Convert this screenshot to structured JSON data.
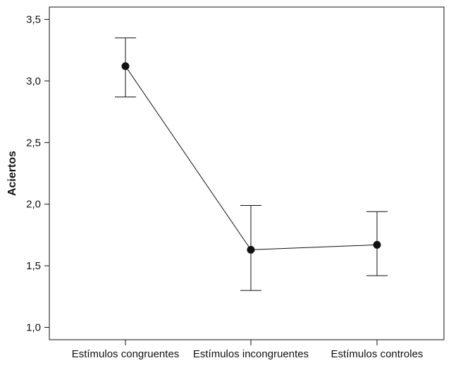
{
  "chart_data": {
    "type": "line",
    "title": "",
    "xlabel": "",
    "ylabel": "Aciertos",
    "categories": [
      "Estímulos congruentes",
      "Estímulos incongruentes",
      "Estímulos controles"
    ],
    "series": [
      {
        "values": [
          3.12,
          1.63,
          1.67
        ],
        "error_low": [
          2.87,
          1.3,
          1.42
        ],
        "error_high": [
          3.35,
          1.99,
          1.94
        ]
      }
    ],
    "ylim": [
      0.9,
      3.6
    ],
    "yticks": [
      1.0,
      1.5,
      2.0,
      2.5,
      3.0,
      3.5
    ],
    "ytick_labels": [
      "1,0",
      "1,5",
      "2,0",
      "2,5",
      "3,0",
      "3,5"
    ],
    "grid": false,
    "legend": "none",
    "colors": {
      "line": "#111111",
      "marker": "#111111",
      "axis": "#111111"
    }
  }
}
